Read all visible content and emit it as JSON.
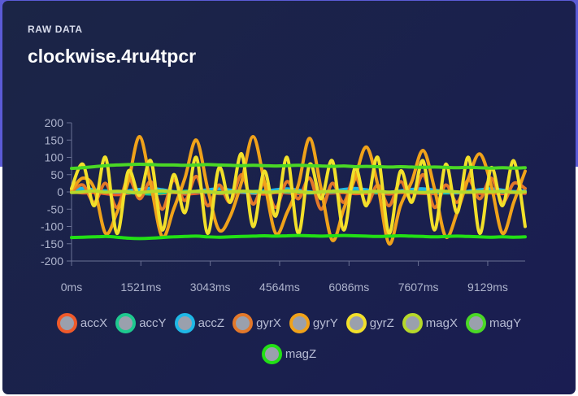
{
  "card": {
    "eyebrow": "RAW DATA",
    "title": "clockwise.4ru4tpcr"
  },
  "chart_data": {
    "type": "line",
    "y_ticks": [
      200,
      150,
      100,
      50,
      0,
      -50,
      -100,
      -150,
      -200
    ],
    "ylim": [
      -200,
      200
    ],
    "x_ticks": [
      {
        "t": 0,
        "label": "0ms"
      },
      {
        "t": 1521,
        "label": "1521ms"
      },
      {
        "t": 3043,
        "label": "3043ms"
      },
      {
        "t": 4564,
        "label": "4564ms"
      },
      {
        "t": 6086,
        "label": "6086ms"
      },
      {
        "t": 7607,
        "label": "7607ms"
      },
      {
        "t": 9129,
        "label": "9129ms"
      }
    ],
    "xlim": [
      0,
      9950
    ],
    "grid": false,
    "legend_position": "bottom",
    "series": [
      {
        "name": "accX",
        "color": "#ef5a2a",
        "values": [
          0,
          -3,
          -2,
          -5,
          -8,
          -4,
          0,
          -3,
          -5,
          -2,
          -6,
          -4,
          -1,
          -5,
          -3,
          -2,
          -4,
          -6,
          -2,
          -3,
          -5,
          -1,
          -4,
          -3,
          -2,
          -5,
          -4,
          -3,
          -6,
          -2,
          -3,
          -4,
          -5,
          -2,
          -3,
          -1,
          -4,
          -3,
          -5,
          -2,
          -4
        ]
      },
      {
        "name": "accY",
        "color": "#1ec98f",
        "values": [
          4,
          5,
          2,
          3,
          1,
          -2,
          -4,
          -6,
          -3,
          0,
          2,
          1,
          -1,
          -3,
          -2,
          0,
          1,
          3,
          2,
          0,
          -1,
          -3,
          -2,
          0,
          2,
          1,
          0,
          -2,
          -1,
          1,
          2,
          0,
          -1,
          -3,
          -2,
          0,
          1,
          2,
          0,
          -1,
          0
        ]
      },
      {
        "name": "accZ",
        "color": "#1fb8e6",
        "values": [
          8,
          10,
          6,
          2,
          0,
          3,
          7,
          10,
          6,
          1,
          -2,
          2,
          6,
          9,
          5,
          0,
          -3,
          1,
          6,
          9,
          5,
          0,
          -2,
          2,
          7,
          10,
          6,
          1,
          -1,
          3,
          7,
          9,
          5,
          0,
          -2,
          2,
          6,
          9,
          5,
          1,
          3
        ]
      },
      {
        "name": "gyrX",
        "color": "#e3782a",
        "values": [
          0,
          20,
          -30,
          25,
          -45,
          40,
          -20,
          30,
          -50,
          35,
          -25,
          45,
          -40,
          20,
          -30,
          50,
          -35,
          25,
          -45,
          30,
          -20,
          40,
          -50,
          25,
          -30,
          45,
          -35,
          20,
          -40,
          30,
          -25,
          50,
          -45,
          20,
          -30,
          35,
          -20,
          40,
          -30,
          25,
          10
        ]
      },
      {
        "name": "gyrY",
        "color": "#f0a21a",
        "values": [
          5,
          40,
          10,
          -120,
          -60,
          30,
          160,
          20,
          -130,
          -50,
          40,
          150,
          10,
          -110,
          -70,
          30,
          160,
          30,
          -120,
          -60,
          20,
          155,
          10,
          -140,
          -50,
          40,
          130,
          20,
          -150,
          -40,
          30,
          120,
          10,
          -130,
          -60,
          40,
          110,
          20,
          -120,
          -30,
          60
        ]
      },
      {
        "name": "gyrZ",
        "color": "#f2e02a",
        "values": [
          10,
          80,
          -40,
          100,
          -120,
          60,
          -10,
          90,
          -110,
          50,
          -60,
          100,
          -120,
          70,
          -30,
          110,
          -100,
          60,
          -70,
          100,
          -120,
          80,
          -20,
          90,
          -110,
          70,
          -40,
          100,
          -120,
          60,
          -30,
          90,
          -110,
          80,
          -60,
          100,
          -120,
          70,
          -40,
          90,
          -100
        ]
      },
      {
        "name": "magX",
        "color": "#b6d82a",
        "values": [
          -2,
          0,
          3,
          -1,
          2,
          0,
          -2,
          1,
          3,
          0,
          -1,
          2,
          1,
          -2,
          0,
          2,
          1,
          -1,
          0,
          3,
          1,
          -2,
          0,
          2,
          1,
          -1,
          0,
          2,
          -1,
          1,
          0,
          -2,
          1,
          2,
          0,
          -1,
          1,
          0,
          2,
          -1,
          0
        ]
      },
      {
        "name": "magY",
        "color": "#4ad825",
        "values": [
          68,
          70,
          73,
          76,
          78,
          79,
          80,
          79,
          78,
          78,
          77,
          78,
          79,
          78,
          77,
          76,
          77,
          76,
          75,
          76,
          77,
          76,
          75,
          74,
          75,
          73,
          74,
          73,
          72,
          73,
          72,
          71,
          72,
          71,
          70,
          71,
          70,
          69,
          70,
          69,
          70
        ]
      },
      {
        "name": "magZ",
        "color": "#22e015",
        "values": [
          -132,
          -131,
          -130,
          -129,
          -131,
          -134,
          -135,
          -134,
          -132,
          -130,
          -129,
          -128,
          -130,
          -131,
          -130,
          -129,
          -128,
          -127,
          -128,
          -127,
          -126,
          -127,
          -128,
          -127,
          -126,
          -127,
          -128,
          -129,
          -128,
          -127,
          -128,
          -129,
          -130,
          -129,
          -128,
          -129,
          -130,
          -131,
          -130,
          -131,
          -130
        ]
      }
    ]
  }
}
